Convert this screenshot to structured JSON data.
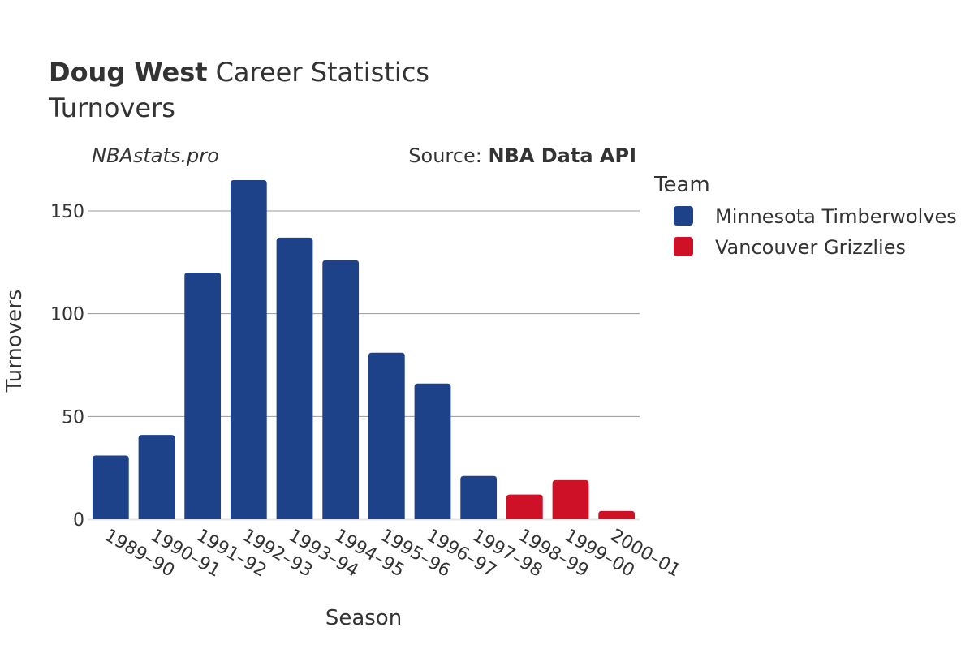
{
  "header": {
    "title_bold": "Doug West",
    "title_rest": "Career Statistics",
    "subtitle": "Turnovers"
  },
  "credits": {
    "site": "NBAstats.pro",
    "source_prefix": "Source: ",
    "source_name": "NBA Data API"
  },
  "legend": {
    "title": "Team",
    "items": [
      {
        "label": "Minnesota Timberwolves",
        "color": "#1d428a"
      },
      {
        "label": "Vancouver Grizzlies",
        "color": "#ce1126"
      }
    ]
  },
  "chart_data": {
    "type": "bar",
    "categories": [
      "1989–90",
      "1990–91",
      "1991–92",
      "1992–93",
      "1993–94",
      "1994–95",
      "1995–96",
      "1996–97",
      "1997–98",
      "1998–99",
      "1999–00",
      "2000–01"
    ],
    "values": [
      31,
      41,
      120,
      165,
      137,
      126,
      81,
      66,
      21,
      12,
      19,
      4
    ],
    "teams": [
      "Minnesota Timberwolves",
      "Minnesota Timberwolves",
      "Minnesota Timberwolves",
      "Minnesota Timberwolves",
      "Minnesota Timberwolves",
      "Minnesota Timberwolves",
      "Minnesota Timberwolves",
      "Minnesota Timberwolves",
      "Minnesota Timberwolves",
      "Vancouver Grizzlies",
      "Vancouver Grizzlies",
      "Vancouver Grizzlies"
    ],
    "xlabel": "Season",
    "ylabel": "Turnovers",
    "ylim": [
      0,
      165
    ],
    "yticks": [
      0,
      50,
      100,
      150
    ],
    "grid": true,
    "legend_position": "right"
  }
}
